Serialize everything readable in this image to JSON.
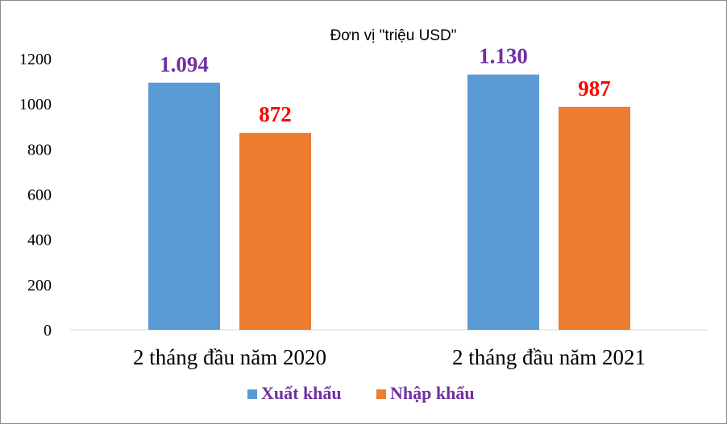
{
  "chart_data": {
    "type": "bar",
    "title": "Đơn vị \"triệu USD\"",
    "categories": [
      "2 tháng  đầu năm 2020",
      "2 tháng  đầu năm 2021"
    ],
    "series": [
      {
        "name": "Xuất khẩu",
        "values": [
          1094,
          1130
        ],
        "labels": [
          "1.094",
          "1.130"
        ],
        "color": "#5b9bd5",
        "label_color": "#7030a0"
      },
      {
        "name": "Nhập khẩu",
        "values": [
          872,
          987
        ],
        "labels": [
          "872",
          "987"
        ],
        "color": "#ed7d31",
        "label_color": "#ff0000"
      }
    ],
    "ylim": [
      0,
      1200
    ],
    "yticks": [
      0,
      200,
      400,
      600,
      800,
      1000,
      1200
    ],
    "ytick_labels": [
      "0",
      "200",
      "400",
      "600",
      "800",
      "1000",
      "1200"
    ],
    "grid": false,
    "legend_position": "bottom",
    "legend_text_color": "#7030a0"
  }
}
